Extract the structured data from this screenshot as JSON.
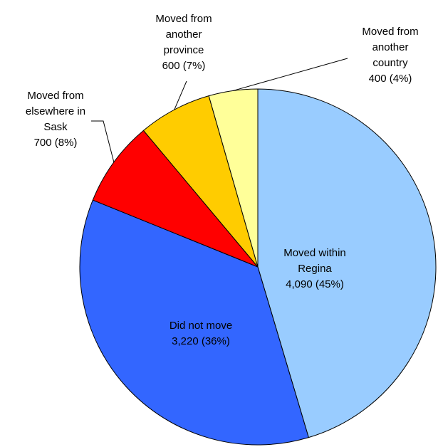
{
  "chart_data": {
    "type": "pie",
    "categories": [
      "Moved within Regina",
      "Did not move",
      "Moved from elsewhere in Sask",
      "Moved from another province",
      "Moved from another country"
    ],
    "values": [
      4090,
      3220,
      700,
      600,
      400
    ],
    "value_labels": [
      "4,090 (45%)",
      "3,220 (36%)",
      "700 (8%)",
      "600 (7%)",
      "400 (4%)"
    ],
    "colors": [
      "#99ccff",
      "#3366ff",
      "#ff0000",
      "#ffcc00",
      "#ffff99"
    ]
  }
}
